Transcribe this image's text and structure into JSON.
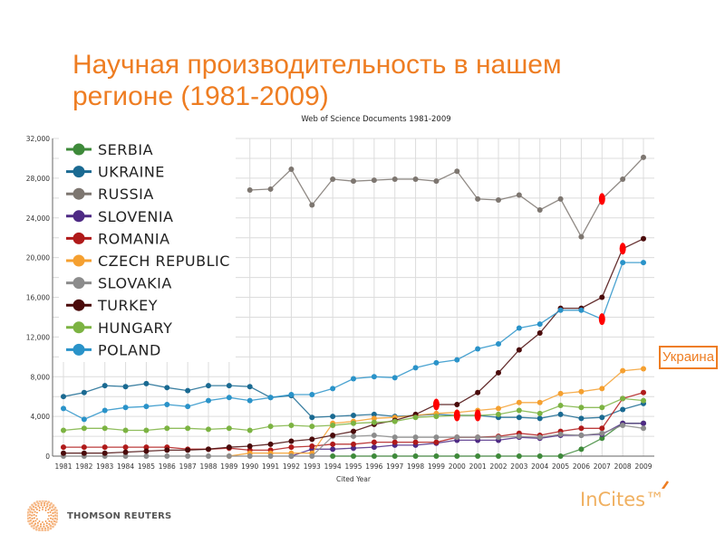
{
  "slide": {
    "title": "Научная производительность в нашем регионе (1981-2009)",
    "annotation": "Украина",
    "brand_left": "THOMSON REUTERS",
    "brand_right": "InCites™"
  },
  "colors": {
    "accent": "#ee7d22",
    "marker": "#ff0000"
  },
  "chart_data": {
    "type": "line",
    "title": "Web of Science Documents 1981-2009",
    "xlabel": "Cited Year",
    "ylabel": "",
    "ylim": [
      0,
      32000
    ],
    "yticks": [
      0,
      4000,
      8000,
      12000,
      16000,
      20000,
      24000,
      28000,
      32000
    ],
    "ytick_labels": [
      "0",
      "4,000",
      "8,000",
      "12,000",
      "16,000",
      "20,000",
      "24,000",
      "28,000",
      "32,000"
    ],
    "grid": true,
    "legend_position": "top-left",
    "x": [
      1981,
      1982,
      1983,
      1984,
      1985,
      1986,
      1987,
      1988,
      1989,
      1990,
      1991,
      1992,
      1993,
      1994,
      1995,
      1996,
      1997,
      1998,
      1999,
      2000,
      2001,
      2002,
      2003,
      2004,
      2005,
      2006,
      2007,
      2008,
      2009
    ],
    "x_labels": [
      "1981",
      "1982",
      "1983",
      "1984",
      "1985",
      "1986",
      "1987",
      "1988",
      "1989",
      "1990",
      "1991",
      "1992",
      "1993",
      "1994",
      "1995",
      "1996",
      "1997",
      "1998",
      "1999",
      "2000",
      "2001",
      "2002",
      "2003",
      "2004",
      "2005",
      "2006",
      "2007",
      "2008",
      "2009"
    ],
    "series": [
      {
        "name": "SERBIA",
        "color": "#3e8a3a",
        "values": [
          null,
          null,
          null,
          null,
          null,
          null,
          null,
          null,
          null,
          null,
          null,
          null,
          null,
          0,
          0,
          0,
          0,
          0,
          0,
          0,
          0,
          0,
          0,
          0,
          0,
          700,
          1800,
          3300,
          3300
        ]
      },
      {
        "name": "UKRAINE",
        "color": "#1a6a92",
        "values": [
          6000,
          6400,
          7100,
          7000,
          7300,
          6900,
          6600,
          7100,
          7100,
          7000,
          5900,
          6100,
          3900,
          4000,
          4100,
          4200,
          4000,
          4100,
          4200,
          4100,
          4100,
          3900,
          3900,
          3800,
          4200,
          3800,
          3900,
          4700,
          5300
        ]
      },
      {
        "name": "RUSSIA",
        "color": "#7d7670",
        "values": [
          null,
          null,
          null,
          null,
          null,
          null,
          null,
          null,
          null,
          26800,
          26900,
          28900,
          25300,
          27900,
          27700,
          27800,
          27900,
          27900,
          27700,
          28700,
          25900,
          25800,
          26300,
          24800,
          25900,
          22100,
          25900,
          27900,
          30100
        ]
      },
      {
        "name": "SLOVENIA",
        "color": "#4e2a84",
        "values": [
          null,
          null,
          null,
          null,
          null,
          null,
          null,
          null,
          null,
          null,
          null,
          0,
          700,
          700,
          800,
          900,
          1100,
          1100,
          1300,
          1600,
          1600,
          1600,
          1900,
          1800,
          2100,
          2100,
          2200,
          3300,
          3300
        ]
      },
      {
        "name": "ROMANIA",
        "color": "#b01a1a",
        "values": [
          900,
          900,
          900,
          900,
          900,
          900,
          700,
          700,
          800,
          600,
          600,
          900,
          1000,
          1200,
          1200,
          1400,
          1400,
          1400,
          1400,
          1900,
          1900,
          2000,
          2300,
          2100,
          2500,
          2800,
          2800,
          5800,
          6400
        ]
      },
      {
        "name": "CZECH REPUBLIC",
        "color": "#f5a030",
        "values": [
          null,
          null,
          null,
          null,
          null,
          null,
          null,
          null,
          0,
          300,
          300,
          300,
          300,
          3300,
          3500,
          3800,
          3900,
          4100,
          4300,
          4400,
          4600,
          4800,
          5400,
          5400,
          6300,
          6500,
          6800,
          8600,
          8800
        ]
      },
      {
        "name": "SLOVAKIA",
        "color": "#8c8c8c",
        "values": [
          0,
          0,
          0,
          0,
          0,
          0,
          0,
          0,
          0,
          0,
          0,
          0,
          0,
          2000,
          2000,
          2100,
          1900,
          1900,
          1900,
          1900,
          1900,
          1900,
          2000,
          1900,
          2200,
          2100,
          2300,
          3100,
          2800
        ]
      },
      {
        "name": "TURKEY",
        "color": "#4a0a0a",
        "values": [
          300,
          300,
          300,
          400,
          500,
          600,
          600,
          700,
          900,
          1000,
          1200,
          1500,
          1700,
          2100,
          2500,
          3200,
          3600,
          4200,
          5200,
          5200,
          6400,
          8400,
          10700,
          12400,
          14900,
          14900,
          16000,
          20900,
          21900
        ]
      },
      {
        "name": "HUNGARY",
        "color": "#7cb342",
        "values": [
          2600,
          2800,
          2800,
          2600,
          2600,
          2800,
          2800,
          2700,
          2800,
          2600,
          3000,
          3100,
          3000,
          3100,
          3300,
          3400,
          3500,
          3900,
          4000,
          4100,
          4100,
          4200,
          4600,
          4300,
          5100,
          4900,
          4900,
          5800,
          5600
        ]
      },
      {
        "name": "POLAND",
        "color": "#2a93c9",
        "values": [
          4800,
          3700,
          4600,
          4900,
          5000,
          5200,
          5000,
          5600,
          5900,
          5600,
          5900,
          6200,
          6200,
          6800,
          7800,
          8000,
          7900,
          8900,
          9400,
          9700,
          10800,
          11300,
          12900,
          13300,
          14700,
          14700,
          13800,
          19500,
          19500
        ]
      }
    ],
    "highlight_marks": [
      {
        "series": "TURKEY",
        "year": 1999
      },
      {
        "series": "HUNGARY",
        "year": 2000
      },
      {
        "series": "HUNGARY",
        "year": 2001
      },
      {
        "series": "POLAND",
        "year": 2007
      },
      {
        "series": "RUSSIA",
        "year": 2007
      },
      {
        "series": "TURKEY",
        "year": 2008
      }
    ]
  }
}
